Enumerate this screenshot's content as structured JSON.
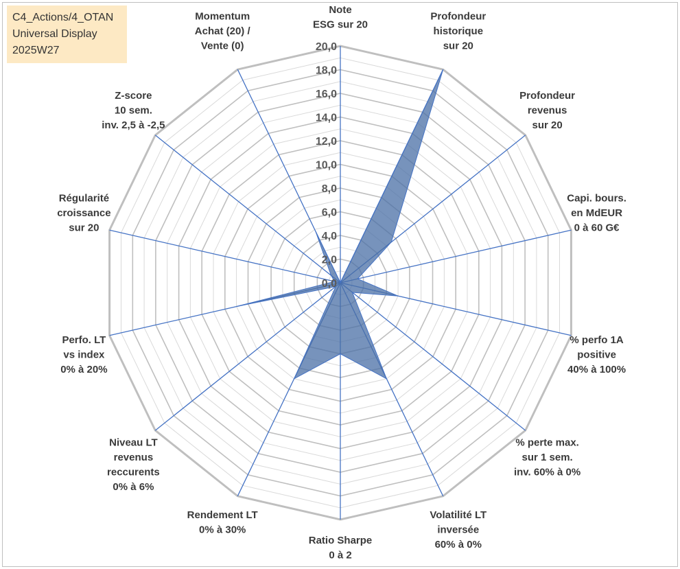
{
  "info_box": {
    "lines": [
      "C4_Actions/4_OTAN",
      "Universal Display",
      "2025W27"
    ],
    "background": "#fde9c4"
  },
  "colors": {
    "grid_major": "#bfbfbf",
    "grid_minor": "#d9d9d9",
    "spokes": "#4472c4",
    "series_fill": "#4a6fa5",
    "series_fill_opacity": 0.75
  },
  "chart_data": {
    "type": "radar",
    "title": "",
    "rlim": [
      0,
      20
    ],
    "rticks": [
      "0,0",
      "2,0",
      "4,0",
      "6,0",
      "8,0",
      "10,0",
      "12,0",
      "14,0",
      "16,0",
      "18,0",
      "20,0"
    ],
    "grid": true,
    "axes": [
      [
        "Note",
        "ESG sur 20"
      ],
      [
        "Profondeur",
        "historique",
        "sur 20"
      ],
      [
        "Profondeur",
        "revenus",
        "sur 20"
      ],
      [
        "Capi. bours.",
        "en MdEUR",
        "0 à 60 G€"
      ],
      [
        "% perfo 1A",
        "positive",
        "40% à 100%"
      ],
      [
        "% perte max.",
        "sur 1 sem.",
        "inv. 60% à 0%"
      ],
      [
        "Volatilité LT",
        "inversée",
        "60% à 0%"
      ],
      [
        "Ratio Sharpe",
        "0 à 2"
      ],
      [
        "Rendement LT",
        "0% à 30%"
      ],
      [
        "Niveau LT",
        "revenus",
        "reccurents",
        "0% à 6%"
      ],
      [
        "Perfo. LT",
        "vs index",
        "0% à 20%"
      ],
      [
        "Régularité",
        "croissance",
        "sur 20"
      ],
      [
        "Z-score",
        "10 sem.",
        "inv. 2,5 à -2,5"
      ],
      [
        "Momentum",
        "Achat (20) /",
        "Vente (0)"
      ]
    ],
    "series": [
      {
        "values": [
          0,
          20,
          5.5,
          1.5,
          5.0,
          1.3,
          9.0,
          6.0,
          9.0,
          0.5,
          9.0,
          0.5,
          1.0,
          4.8
        ]
      }
    ]
  }
}
